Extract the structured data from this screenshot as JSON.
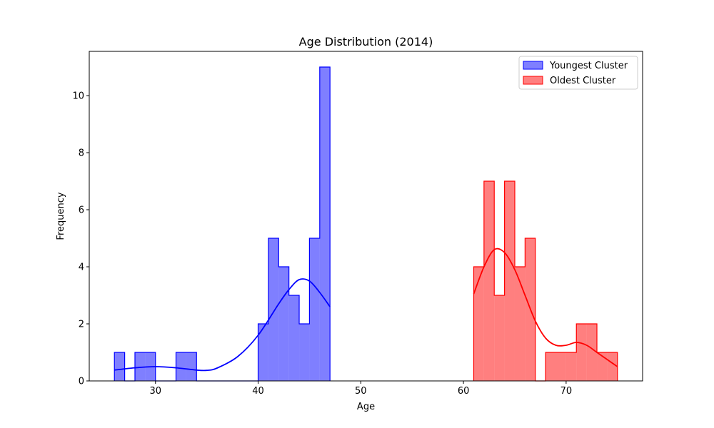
{
  "chart_data": {
    "type": "histogram",
    "title": "Age Distribution (2014)",
    "xlabel": "Age",
    "ylabel": "Frequency",
    "xlim": [
      23.55,
      77.45
    ],
    "ylim": [
      0,
      11.55
    ],
    "xticks": [
      30,
      40,
      50,
      60,
      70
    ],
    "yticks": [
      0,
      2,
      4,
      6,
      8,
      10
    ],
    "grid": false,
    "legend_position": "top-right",
    "series": [
      {
        "name": "Youngest Cluster",
        "color": "#0000ff",
        "fill_opacity": 0.5,
        "bin_edges": [
          26,
          27,
          28,
          29,
          30,
          31,
          32,
          33,
          34,
          35,
          36,
          37,
          38,
          39,
          40,
          41,
          42,
          43,
          44,
          45,
          46,
          47
        ],
        "counts": [
          1,
          0,
          1,
          1,
          0,
          0,
          1,
          1,
          0,
          0,
          0,
          0,
          0,
          0,
          2,
          5,
          4,
          3,
          2,
          5,
          11
        ],
        "kde": [
          [
            26,
            0.38
          ],
          [
            28,
            0.46
          ],
          [
            30,
            0.5
          ],
          [
            32,
            0.46
          ],
          [
            34,
            0.38
          ],
          [
            35,
            0.37
          ],
          [
            36,
            0.45
          ],
          [
            38,
            0.85
          ],
          [
            40,
            1.6
          ],
          [
            42,
            2.7
          ],
          [
            43,
            3.2
          ],
          [
            44,
            3.55
          ],
          [
            45,
            3.5
          ],
          [
            46,
            3.1
          ],
          [
            47,
            2.6
          ]
        ]
      },
      {
        "name": "Oldest Cluster",
        "color": "#ff0000",
        "fill_opacity": 0.5,
        "bin_edges": [
          61,
          62,
          63,
          64,
          65,
          66,
          67,
          68,
          69,
          70,
          71,
          72,
          73,
          74,
          75
        ],
        "counts": [
          4,
          7,
          3,
          7,
          4,
          5,
          0,
          1,
          1,
          1,
          2,
          2,
          1,
          1
        ],
        "kde": [
          [
            61,
            3.05
          ],
          [
            62,
            4.0
          ],
          [
            63,
            4.6
          ],
          [
            64,
            4.5
          ],
          [
            65,
            3.9
          ],
          [
            66,
            3.0
          ],
          [
            67,
            2.1
          ],
          [
            68,
            1.5
          ],
          [
            69,
            1.25
          ],
          [
            70,
            1.25
          ],
          [
            71,
            1.35
          ],
          [
            72,
            1.25
          ],
          [
            73,
            1.0
          ],
          [
            74,
            0.75
          ],
          [
            75,
            0.5
          ]
        ]
      }
    ]
  }
}
